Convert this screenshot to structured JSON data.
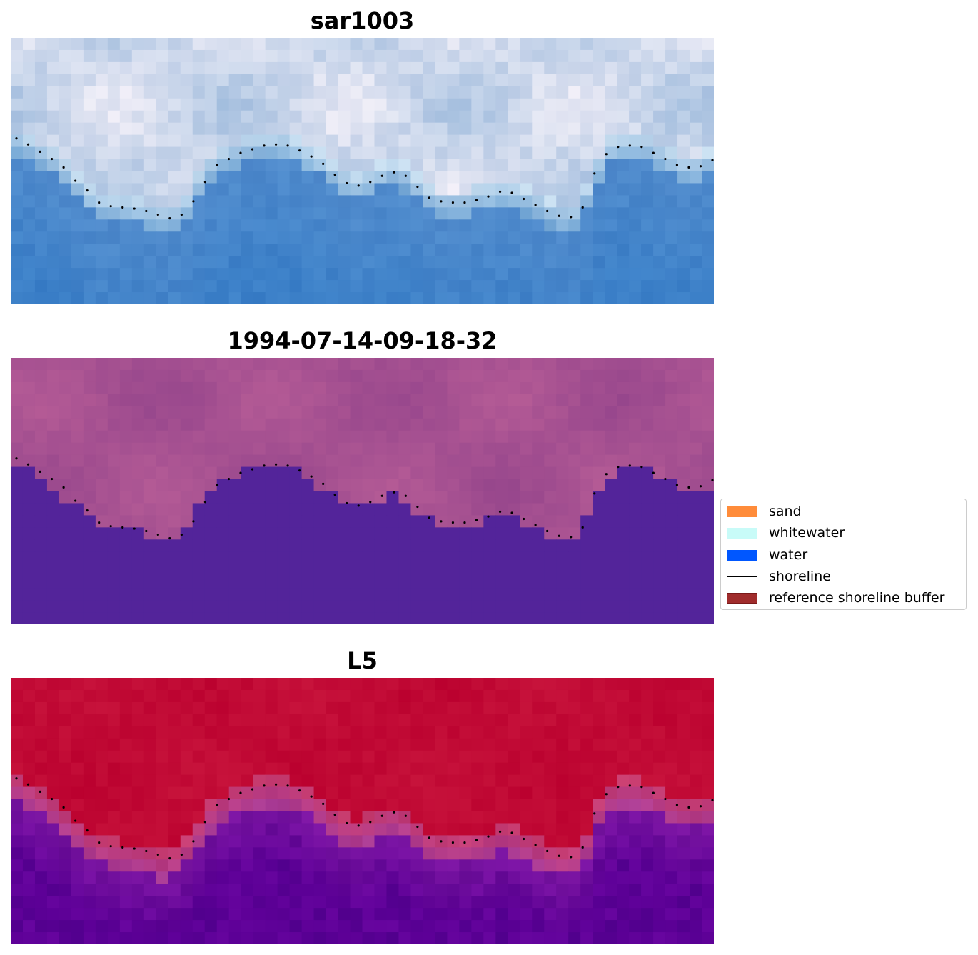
{
  "chart_data": [
    {
      "type": "heatmap",
      "title": "sar1003",
      "render": "rgb",
      "grid": false,
      "axes": "off"
    },
    {
      "type": "heatmap",
      "title": "1994-07-14-09-18-32",
      "render": "classification",
      "grid": false,
      "axes": "off"
    },
    {
      "type": "heatmap",
      "title": "L5",
      "render": "probability",
      "grid": false,
      "axes": "off"
    }
  ],
  "shoreline": {
    "style": "dotted",
    "color": "#000000",
    "y_row_by_column": [
      8.3,
      8.8,
      9.4,
      10.0,
      10.7,
      11.8,
      12.6,
      13.6,
      13.9,
      14.0,
      14.1,
      14.3,
      14.6,
      14.9,
      14.6,
      13.5,
      11.9,
      10.5,
      10.0,
      9.5,
      9.2,
      8.9,
      8.8,
      8.9,
      9.3,
      9.8,
      10.4,
      11.3,
      12.0,
      12.2,
      11.9,
      11.4,
      11.1,
      11.4,
      12.3,
      13.2,
      13.5,
      13.6,
      13.6,
      13.4,
      13.1,
      12.7,
      12.8,
      13.3,
      13.8,
      14.3,
      14.7,
      14.8,
      14.0,
      11.2,
      9.6,
      9.0,
      8.9,
      9.0,
      9.5,
      10.0,
      10.5,
      10.7,
      10.6,
      10.1
    ]
  },
  "legend": {
    "placement": "outside-right",
    "items": [
      {
        "label": "sand",
        "color": "#ff8c3a",
        "kind": "patch"
      },
      {
        "label": "whitewater",
        "color": "#c8fbf8",
        "kind": "patch"
      },
      {
        "label": "water",
        "color": "#0057ff",
        "kind": "patch"
      },
      {
        "label": "shoreline",
        "color": "#000000",
        "kind": "line"
      },
      {
        "label": "reference shoreline buffer",
        "color": "#a02c2c",
        "kind": "patch"
      }
    ]
  }
}
